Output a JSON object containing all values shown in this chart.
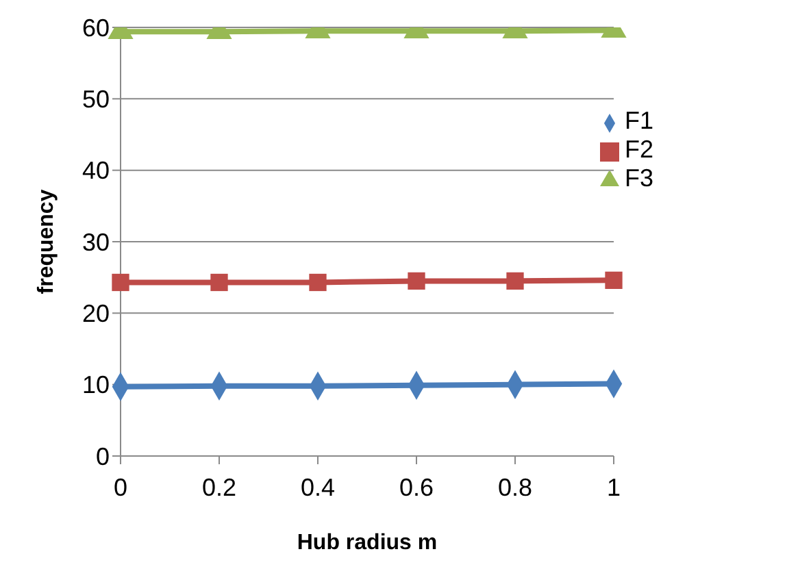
{
  "chart_data": {
    "type": "line",
    "xlabel": "Hub radius m",
    "ylabel": "frequency",
    "categories": [
      "0",
      "0.2",
      "0.4",
      "0.6",
      "0.8",
      "1"
    ],
    "series": [
      {
        "name": "F1",
        "color": "#4a7ebb",
        "marker": "diamond",
        "values": [
          9.7,
          9.8,
          9.8,
          9.9,
          10,
          10.1
        ]
      },
      {
        "name": "F2",
        "color": "#be4b48",
        "marker": "square",
        "values": [
          24.3,
          24.3,
          24.3,
          24.5,
          24.5,
          24.6
        ]
      },
      {
        "name": "F3",
        "color": "#98b954",
        "marker": "triangle",
        "values": [
          59.4,
          59.4,
          59.5,
          59.5,
          59.5,
          59.6
        ]
      }
    ],
    "ylim": [
      0,
      60
    ],
    "yticks": [
      0,
      10,
      20,
      30,
      40,
      50,
      60
    ],
    "grid": "y",
    "legend": "right"
  }
}
